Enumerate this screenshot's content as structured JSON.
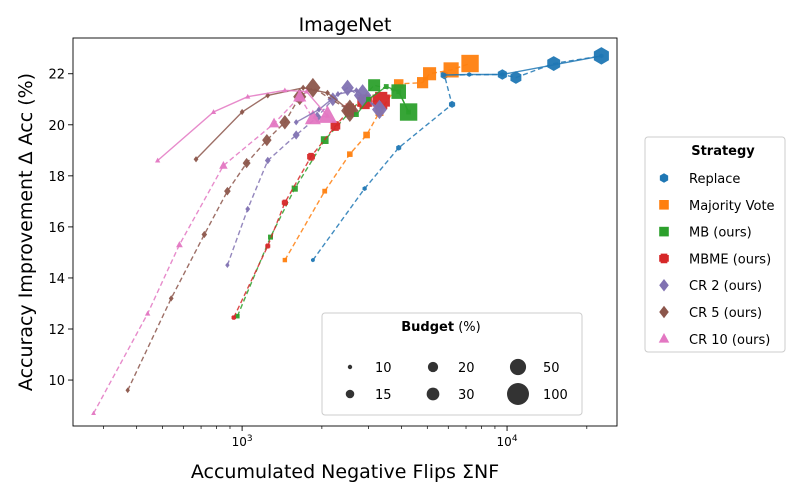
{
  "chart_data": {
    "type": "scatter",
    "title": "ImageNet",
    "xlabel": "Accumulated Negative Flips ΣNF",
    "ylabel": "Accuracy Improvement Δ Acc (%)",
    "x_scale": "log",
    "xlim": [
      230,
      26000
    ],
    "ylim": [
      8.2,
      23.4
    ],
    "x_ticks": [
      {
        "value": 1000,
        "base": "10",
        "exp": "3"
      },
      {
        "value": 10000,
        "base": "10",
        "exp": "4"
      }
    ],
    "y_ticks": [
      10,
      12,
      14,
      16,
      18,
      20,
      22
    ],
    "grid": false,
    "legend": {
      "title": "Strategy",
      "placement": "right",
      "entries": [
        "Replace",
        "Majority Vote",
        "MB (ours)",
        "MBME (ours)",
        "CR 2 (ours)",
        "CR 5 (ours)",
        "CR 10 (ours)"
      ]
    },
    "size_legend": {
      "title_bold": "Budget",
      "title_rest": " (%)",
      "placement": "lower-center",
      "entries": [
        {
          "label": "10",
          "budget": 10
        },
        {
          "label": "20",
          "budget": 20
        },
        {
          "label": "50",
          "budget": 50
        },
        {
          "label": "15",
          "budget": 15
        },
        {
          "label": "30",
          "budget": 30
        },
        {
          "label": "100",
          "budget": 100
        }
      ]
    },
    "series": [
      {
        "name": "Replace",
        "color": "#1f77b4",
        "marker": "hexagon",
        "points": [
          [
            1850,
            14.7
          ],
          [
            2900,
            17.5
          ],
          [
            3900,
            19.1
          ],
          [
            6200,
            20.8
          ],
          [
            5800,
            21.95
          ],
          [
            9600,
            21.97
          ],
          [
            10800,
            21.85
          ],
          [
            15000,
            22.4
          ],
          [
            22700,
            22.7
          ]
        ]
      },
      {
        "name": "Majority Vote",
        "color": "#ff7f0e",
        "marker": "square",
        "points": [
          [
            1450,
            14.7
          ],
          [
            2050,
            17.4
          ],
          [
            2550,
            18.85
          ],
          [
            2950,
            19.6
          ],
          [
            3300,
            20.5
          ],
          [
            3900,
            21.6
          ],
          [
            4800,
            21.65
          ],
          [
            5100,
            22.0
          ],
          [
            6150,
            22.15
          ],
          [
            7250,
            22.4
          ]
        ]
      },
      {
        "name": "MB (ours)",
        "color": "#2ca02c",
        "marker": "square",
        "points": [
          [
            960,
            12.5
          ],
          [
            1280,
            15.6
          ],
          [
            1580,
            17.5
          ],
          [
            2050,
            19.4
          ],
          [
            2550,
            20.5
          ],
          [
            3150,
            21.55
          ],
          [
            3900,
            21.3
          ],
          [
            4250,
            20.5
          ]
        ]
      },
      {
        "name": "MBME (ours)",
        "color": "#d62728",
        "marker": "plus",
        "points": [
          [
            930,
            12.45
          ],
          [
            1250,
            15.25
          ],
          [
            1450,
            16.95
          ],
          [
            1820,
            18.75
          ],
          [
            2250,
            19.95
          ],
          [
            2550,
            20.6
          ],
          [
            2900,
            20.9
          ],
          [
            3350,
            20.95
          ]
        ]
      },
      {
        "name": "CR 2 (ours)",
        "color": "#8172b2",
        "marker": "diamond",
        "points": [
          [
            880,
            14.5
          ],
          [
            1050,
            16.7
          ],
          [
            1250,
            18.6
          ],
          [
            1600,
            19.6
          ],
          [
            1920,
            20.3
          ],
          [
            2200,
            21.0
          ],
          [
            2500,
            21.45
          ],
          [
            3300,
            20.6
          ],
          [
            2850,
            21.15
          ]
        ]
      },
      {
        "name": "CR 5 (ours)",
        "color": "#8c564b",
        "marker": "diamond",
        "points": [
          [
            370,
            9.6
          ],
          [
            540,
            13.2
          ],
          [
            720,
            15.7
          ],
          [
            880,
            17.4
          ],
          [
            1040,
            18.5
          ],
          [
            1240,
            19.4
          ],
          [
            1450,
            20.1
          ],
          [
            1650,
            21.1
          ],
          [
            1850,
            21.45
          ],
          [
            2550,
            20.55
          ]
        ]
      },
      {
        "name": "CR 10 (ours)",
        "color": "#e377c2",
        "marker": "triangle",
        "points": [
          [
            275,
            8.7
          ],
          [
            440,
            12.6
          ],
          [
            580,
            15.3
          ],
          [
            850,
            18.4
          ],
          [
            1320,
            20.05
          ],
          [
            1650,
            21.1
          ],
          [
            1850,
            20.25
          ],
          [
            2100,
            20.35
          ]
        ]
      },
      {
        "name": "CR 2 (ours)",
        "color": "#8172b2",
        "marker": "diamond",
        "style": "solid",
        "points": [
          [
            1600,
            20.1
          ],
          [
            1950,
            20.6
          ],
          [
            2300,
            21.2
          ],
          [
            2700,
            21.35
          ],
          [
            3300,
            20.6
          ]
        ]
      },
      {
        "name": "CR 5 (ours)",
        "color": "#8c564b",
        "marker": "diamond",
        "style": "solid",
        "points": [
          [
            670,
            18.65
          ],
          [
            1000,
            20.5
          ],
          [
            1250,
            21.15
          ],
          [
            1700,
            21.45
          ],
          [
            2100,
            21.25
          ],
          [
            2550,
            20.55
          ]
        ]
      },
      {
        "name": "CR 10 (ours)",
        "color": "#e377c2",
        "marker": "triangle",
        "style": "solid",
        "points": [
          [
            480,
            18.6
          ],
          [
            780,
            20.5
          ],
          [
            1050,
            21.1
          ],
          [
            1450,
            21.35
          ],
          [
            1750,
            21.3
          ],
          [
            2100,
            20.35
          ]
        ]
      },
      {
        "name": "Replace",
        "color": "#1f77b4",
        "marker": "hexagon",
        "style": "solid",
        "points": [
          [
            5800,
            21.95
          ],
          [
            7200,
            21.97
          ],
          [
            9600,
            21.97
          ],
          [
            22700,
            22.7
          ]
        ]
      },
      {
        "name": "MB (ours)",
        "color": "#2ca02c",
        "marker": "square",
        "style": "solid",
        "points": [
          [
            2700,
            20.4
          ],
          [
            3000,
            21.0
          ],
          [
            3500,
            21.5
          ],
          [
            3900,
            21.3
          ],
          [
            4250,
            20.5
          ]
        ]
      }
    ]
  }
}
